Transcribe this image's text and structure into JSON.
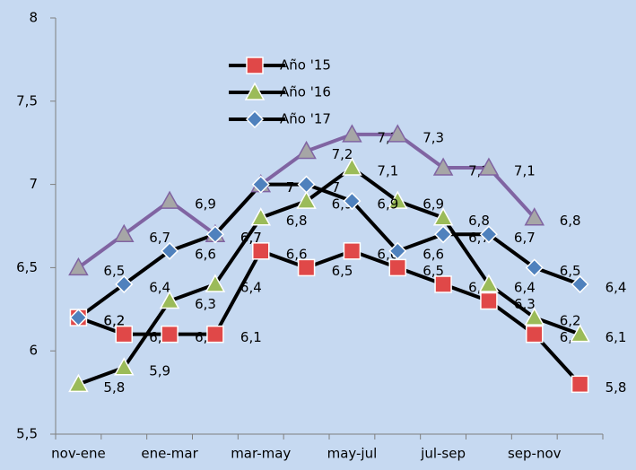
{
  "chart_data": {
    "type": "line",
    "categories": [
      "nov-ene",
      null,
      "ene-mar",
      null,
      "mar-may",
      null,
      "may-jul",
      null,
      "jul-sep",
      null,
      "sep-nov",
      null
    ],
    "series": [
      {
        "name": "Año '15",
        "color": "#e04848",
        "line_color": "#000000",
        "marker": "square",
        "values": [
          6.2,
          6.1,
          6.1,
          6.1,
          6.6,
          6.5,
          6.6,
          6.5,
          6.4,
          6.3,
          6.1,
          5.8
        ],
        "value_labels": [
          "6,2",
          "6,1",
          "6,1",
          "6,1",
          "6,6",
          "6,5",
          "6,6",
          "6,5",
          "6,4",
          "6,3",
          "6,1",
          "5,8"
        ]
      },
      {
        "name": "Año '16",
        "color": "#9bbb59",
        "line_color": "#000000",
        "marker": "triangle",
        "values": [
          5.8,
          5.9,
          6.3,
          6.4,
          6.8,
          6.9,
          7.1,
          6.9,
          6.8,
          6.4,
          6.2,
          6.1
        ],
        "value_labels": [
          "5,8",
          "5,9",
          "6,3",
          "6,4",
          "6,8",
          "6,9",
          "7,1",
          "6,9",
          "6,8",
          "6,4",
          "6,2",
          "6,1"
        ]
      },
      {
        "name": "Año '17",
        "color": "#4f81bd",
        "line_color": "#000000",
        "marker": "diamond",
        "values": [
          6.2,
          6.4,
          6.6,
          6.7,
          7,
          7,
          6.9,
          6.6,
          6.7,
          6.7,
          6.5,
          6.4
        ],
        "value_labels": [
          "6,2",
          "6,4",
          "6,6",
          "6,7",
          "7",
          "7",
          "6,9",
          "6,6",
          "6,7",
          "6,7",
          "6,5",
          "6,4"
        ]
      },
      {
        "color": "#a6a6a6",
        "line_color": "#8064a2",
        "marker": "triangle",
        "values": [
          6.5,
          6.7,
          6.9,
          6.7,
          7,
          7.2,
          7.3,
          7.3,
          7.1,
          7.1,
          6.8,
          null
        ],
        "value_labels": [
          "6,5",
          "6,7",
          "6,9",
          "6,7",
          "7",
          "7,2",
          "7,3",
          "7,3",
          "7,1",
          "7,1",
          "6,8",
          null
        ]
      }
    ],
    "ylim": [
      5.5,
      8
    ],
    "yticks": [
      {
        "value": 5.5,
        "label": "5,5"
      },
      6,
      {
        "value": 6.5,
        "label": "6,5"
      },
      7,
      {
        "value": 7.5,
        "label": "7,5"
      },
      8
    ]
  }
}
